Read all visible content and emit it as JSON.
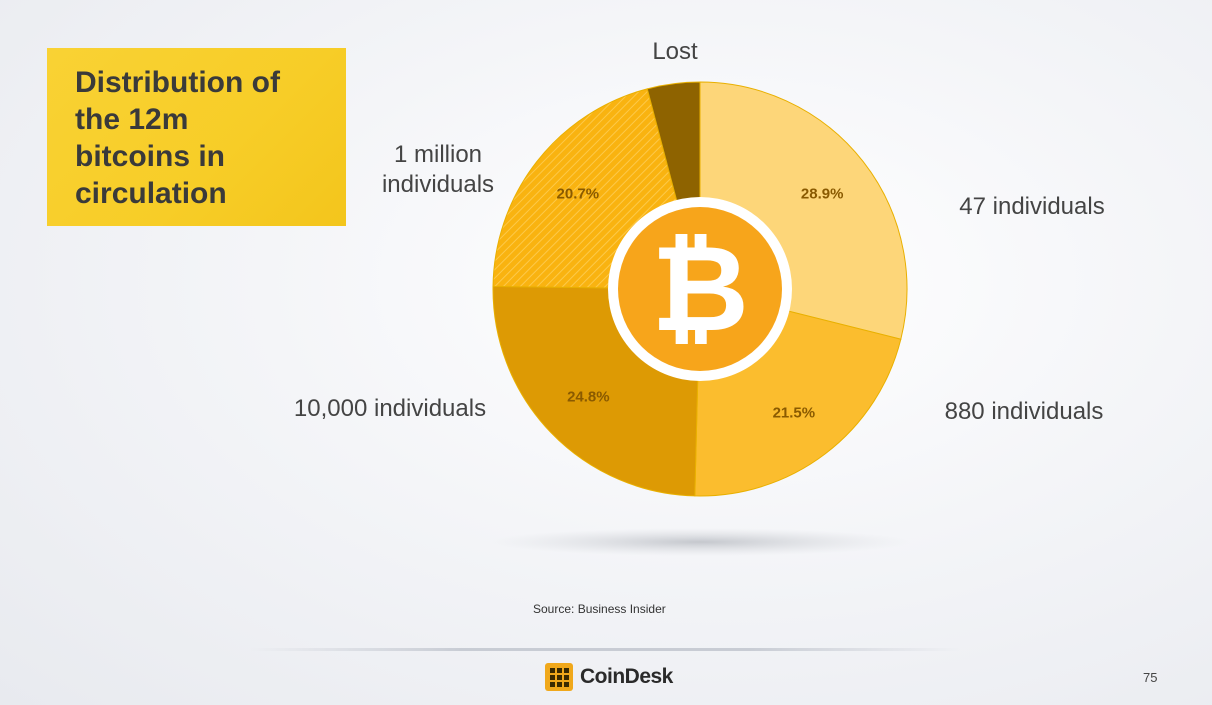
{
  "title": "Distribution of\nthe 12m\nbitcoins in\ncirculation",
  "source": "Source: Business Insider",
  "footer": {
    "brand": "CoinDesk",
    "page_number": "75"
  },
  "chart_data": {
    "type": "pie",
    "title": "Distribution of the 12m bitcoins in circulation",
    "start_angle_deg": 0,
    "direction": "clockwise",
    "slices": [
      {
        "label": "47 individuals",
        "value": 28.9,
        "value_label": "28.9%",
        "color": "#fdd679"
      },
      {
        "label": "880 individuals",
        "value": 21.5,
        "value_label": "21.5%",
        "color": "#fbbd2e"
      },
      {
        "label": "10,000 individuals",
        "value": 24.8,
        "value_label": "24.8%",
        "color": "#dd9a04"
      },
      {
        "label": "1 million individuals",
        "value": 20.7,
        "value_label": "20.7%",
        "color": "#f9b310"
      },
      {
        "label": "Lost",
        "value": 4.1,
        "value_label": "",
        "color": "#8e6300"
      }
    ],
    "center_icon": "bitcoin-logo-icon"
  }
}
